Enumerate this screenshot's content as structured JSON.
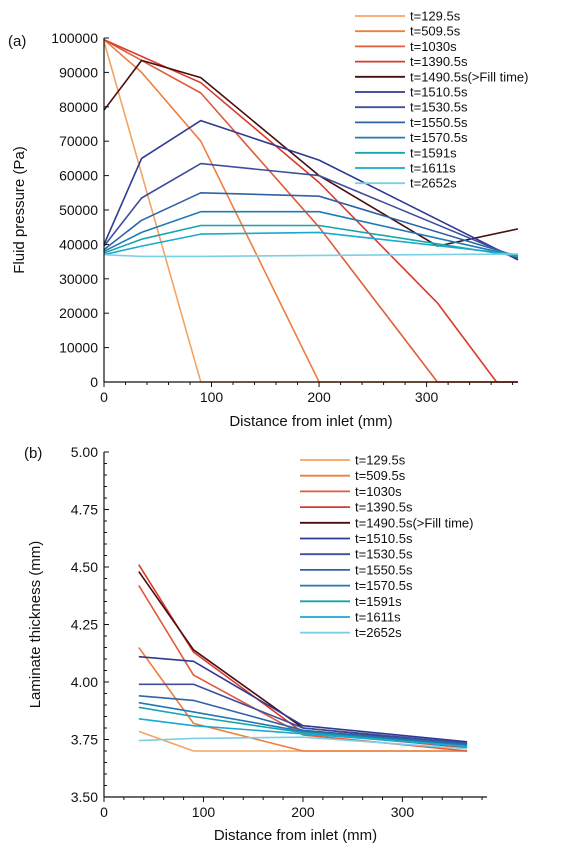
{
  "series_colors": [
    "#f4a462",
    "#ec7f3f",
    "#e05b3a",
    "#d93a2c",
    "#4a0d0d",
    "#2e3a93",
    "#3e4e9c",
    "#2f63a6",
    "#1f7ab5",
    "#16a5ad",
    "#1aa9cf",
    "#7ccfe5"
  ],
  "chart_data": [
    {
      "type": "line",
      "panel_label": "(a)",
      "xlabel": "Distance from inlet (mm)",
      "ylabel": "Fluid pressure (Pa)",
      "xlim": [
        0,
        385
      ],
      "ylim": [
        0,
        100000
      ],
      "xticks": [
        0,
        100,
        200,
        300
      ],
      "yticks": [
        0,
        10000,
        20000,
        30000,
        40000,
        50000,
        60000,
        70000,
        80000,
        90000,
        100000
      ],
      "legend_position": "top-right",
      "series": [
        {
          "name": "t=129.5s",
          "points": [
            [
              0,
              99000
            ],
            [
              90,
              0
            ],
            [
              385,
              0
            ]
          ]
        },
        {
          "name": "t=509.5s",
          "points": [
            [
              0,
              99500
            ],
            [
              35,
              90000
            ],
            [
              90,
              70000
            ],
            [
              200,
              0
            ],
            [
              385,
              0
            ]
          ]
        },
        {
          "name": "t=1030s",
          "points": [
            [
              0,
              99500
            ],
            [
              90,
              84000
            ],
            [
              200,
              45000
            ],
            [
              310,
              0
            ],
            [
              385,
              0
            ]
          ]
        },
        {
          "name": "t=1390.5s",
          "points": [
            [
              0,
              99500
            ],
            [
              90,
              87000
            ],
            [
              200,
              58000
            ],
            [
              310,
              23000
            ],
            [
              365,
              0
            ],
            [
              385,
              0
            ]
          ]
        },
        {
          "name": "t=1490.5s(>Fill time)",
          "points": [
            [
              0,
              79000
            ],
            [
              35,
              93500
            ],
            [
              90,
              88500
            ],
            [
              200,
              60000
            ],
            [
              310,
              39500
            ],
            [
              385,
              44500
            ]
          ]
        },
        {
          "name": "t=1510.5s",
          "points": [
            [
              0,
              40000
            ],
            [
              35,
              65000
            ],
            [
              90,
              76000
            ],
            [
              200,
              64500
            ],
            [
              385,
              35500
            ]
          ]
        },
        {
          "name": "t=1530.5s",
          "points": [
            [
              0,
              39500
            ],
            [
              35,
              53500
            ],
            [
              90,
              63500
            ],
            [
              200,
              60000
            ],
            [
              385,
              36000
            ]
          ]
        },
        {
          "name": "t=1550.5s",
          "points": [
            [
              0,
              38500
            ],
            [
              35,
              47000
            ],
            [
              90,
              55000
            ],
            [
              200,
              54000
            ],
            [
              385,
              36500
            ]
          ]
        },
        {
          "name": "t=1570.5s",
          "points": [
            [
              0,
              38000
            ],
            [
              35,
              43500
            ],
            [
              90,
              49500
            ],
            [
              200,
              49500
            ],
            [
              385,
              36500
            ]
          ]
        },
        {
          "name": "t=1591s",
          "points": [
            [
              0,
              37500
            ],
            [
              35,
              41500
            ],
            [
              90,
              45500
            ],
            [
              200,
              45500
            ],
            [
              385,
              36500
            ]
          ]
        },
        {
          "name": "t=1611s",
          "points": [
            [
              0,
              37000
            ],
            [
              35,
              39500
            ],
            [
              90,
              43000
            ],
            [
              200,
              43500
            ],
            [
              385,
              37000
            ]
          ]
        },
        {
          "name": "t=2652s",
          "points": [
            [
              0,
              37000
            ],
            [
              35,
              36500
            ],
            [
              90,
              36500
            ],
            [
              200,
              36800
            ],
            [
              385,
              37200
            ]
          ]
        }
      ]
    },
    {
      "type": "line",
      "panel_label": "(b)",
      "xlabel": "Distance from inlet (mm)",
      "ylabel": "Laminate thickness (mm)",
      "xlim": [
        0,
        385
      ],
      "ylim": [
        3.5,
        5.0
      ],
      "xticks": [
        0,
        100,
        200,
        300
      ],
      "yticks": [
        3.5,
        3.75,
        4.0,
        4.25,
        4.5,
        4.75,
        5.0
      ],
      "ytick_labels": [
        "3.50",
        "3.75",
        "4.00",
        "4.25",
        "4.50",
        "4.75",
        "5.00"
      ],
      "legend_position": "top-right",
      "series": [
        {
          "name": "t=129.5s",
          "points": [
            [
              35,
              3.785
            ],
            [
              90,
              3.7
            ],
            [
              200,
              3.7
            ],
            [
              365,
              3.7
            ]
          ]
        },
        {
          "name": "t=509.5s",
          "points": [
            [
              35,
              4.15
            ],
            [
              90,
              3.82
            ],
            [
              200,
              3.7
            ],
            [
              365,
              3.7
            ]
          ]
        },
        {
          "name": "t=1030s",
          "points": [
            [
              35,
              4.42
            ],
            [
              90,
              4.03
            ],
            [
              200,
              3.77
            ],
            [
              365,
              3.7
            ]
          ]
        },
        {
          "name": "t=1390.5s",
          "points": [
            [
              35,
              4.51
            ],
            [
              90,
              4.13
            ],
            [
              200,
              3.78
            ],
            [
              365,
              3.715
            ]
          ]
        },
        {
          "name": "t=1490.5s(>Fill time)",
          "points": [
            [
              35,
              4.48
            ],
            [
              90,
              4.14
            ],
            [
              200,
              3.8
            ],
            [
              365,
              3.73
            ]
          ]
        },
        {
          "name": "t=1510.5s",
          "points": [
            [
              35,
              4.11
            ],
            [
              90,
              4.09
            ],
            [
              200,
              3.81
            ],
            [
              365,
              3.74
            ]
          ]
        },
        {
          "name": "t=1530.5s",
          "points": [
            [
              35,
              3.99
            ],
            [
              90,
              3.99
            ],
            [
              200,
              3.8
            ],
            [
              365,
              3.735
            ]
          ]
        },
        {
          "name": "t=1550.5s",
          "points": [
            [
              35,
              3.94
            ],
            [
              90,
              3.92
            ],
            [
              200,
              3.79
            ],
            [
              365,
              3.73
            ]
          ]
        },
        {
          "name": "t=1570.5s",
          "points": [
            [
              35,
              3.91
            ],
            [
              90,
              3.87
            ],
            [
              200,
              3.785
            ],
            [
              365,
              3.725
            ]
          ]
        },
        {
          "name": "t=1591s",
          "points": [
            [
              35,
              3.89
            ],
            [
              90,
              3.85
            ],
            [
              200,
              3.78
            ],
            [
              365,
              3.72
            ]
          ]
        },
        {
          "name": "t=1611s",
          "points": [
            [
              35,
              3.84
            ],
            [
              90,
              3.81
            ],
            [
              200,
              3.775
            ],
            [
              365,
              3.72
            ]
          ]
        },
        {
          "name": "t=2652s",
          "points": [
            [
              35,
              3.745
            ],
            [
              90,
              3.755
            ],
            [
              200,
              3.76
            ],
            [
              365,
              3.71
            ]
          ]
        }
      ]
    }
  ]
}
